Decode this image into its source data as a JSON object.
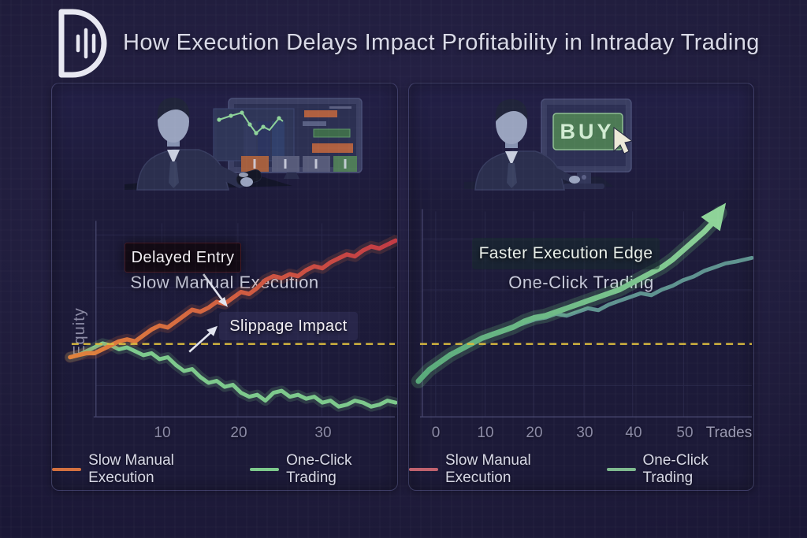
{
  "header": {
    "logo": "d-candlestick-logo",
    "title": "How Execution Delays Impact Profitability in Intraday Trading"
  },
  "panels": {
    "left": {
      "caption": "Slow Manual Execution",
      "y_axis_label": "Equity",
      "annotations": {
        "delayed_entry": "Delayed Entry",
        "slippage_impact": "Slippage Impact"
      },
      "x_ticks": [
        "10",
        "20",
        "30"
      ],
      "legend": [
        {
          "label": "Slow Manual Execution",
          "color": "#d4713f"
        },
        {
          "label": "One-Click Trading",
          "color": "#7dc98c"
        }
      ]
    },
    "right": {
      "caption": "One-Click Trading",
      "buy_button": "BUY",
      "annotations": {
        "faster_edge": "Faster Execution Edge"
      },
      "x_ticks": [
        "0",
        "10",
        "20",
        "30",
        "40",
        "50"
      ],
      "x_axis_title": "Trades",
      "legend": [
        {
          "label": "Slow Manual Execution",
          "color": "#c0626e"
        },
        {
          "label": "One-Click Trading",
          "color": "#7fba8f"
        }
      ]
    }
  },
  "colors": {
    "background": "#1f1c3b",
    "panel": "#1d1b3a",
    "baseline_dash": "#d9ba3e",
    "slow_left_gradient": [
      "#e0823c",
      "#c23b45"
    ],
    "one_click_left": "#7dc98c",
    "one_click_right_gradient": [
      "#58a97a",
      "#8ed398"
    ],
    "slow_right": "#5f9390"
  },
  "chart_data": [
    {
      "type": "line",
      "panel": "left",
      "title": "Slow Manual Execution",
      "xlabel": "",
      "ylabel": "Equity",
      "xlim": [
        0,
        40
      ],
      "ylim": [
        -38,
        58
      ],
      "x_ticks": [
        10,
        20,
        30
      ],
      "baseline_y": 0,
      "grid": true,
      "annotations": [
        "Delayed Entry",
        "Slippage Impact"
      ],
      "series": [
        {
          "name": "One-Click Trading",
          "color": "#7dc98c",
          "glow": "#7dc98c",
          "width": 5,
          "x": [
            0,
            1,
            2,
            3,
            4,
            5,
            6,
            7,
            8,
            9,
            10,
            11,
            12,
            13,
            14,
            15,
            16,
            17,
            18,
            19,
            20,
            21,
            22,
            23,
            24,
            25,
            26,
            27,
            28,
            29,
            30,
            31,
            32,
            33,
            34,
            35,
            36,
            37,
            38,
            39,
            40
          ],
          "y": [
            -7,
            -6,
            -4,
            -2,
            0,
            -1,
            -3,
            -2,
            -4,
            -6,
            -5,
            -8,
            -7,
            -11,
            -14,
            -13,
            -17,
            -20,
            -19,
            -22,
            -21,
            -25,
            -27,
            -26,
            -29,
            -25,
            -24,
            -27,
            -26,
            -28,
            -27,
            -30,
            -29,
            -32,
            -31,
            -29,
            -30,
            -32,
            -31,
            -29,
            -30
          ]
        },
        {
          "name": "Slow Manual Execution",
          "color_start": "#e0823c",
          "color_end": "#c23b45",
          "glow": "#d96b3e",
          "width": 5.5,
          "x": [
            0,
            1,
            2,
            3,
            4,
            5,
            6,
            7,
            8,
            9,
            10,
            11,
            12,
            13,
            14,
            15,
            16,
            17,
            18,
            19,
            20,
            21,
            22,
            23,
            24,
            25,
            26,
            27,
            28,
            29,
            30,
            31,
            32,
            33,
            34,
            35,
            36,
            37,
            38,
            39,
            40
          ],
          "y": [
            -7,
            -6,
            -5,
            -5,
            -3,
            -1,
            1,
            2,
            1,
            4,
            7,
            9,
            8,
            11,
            14,
            17,
            16,
            18,
            21,
            20,
            23,
            26,
            25,
            28,
            32,
            34,
            33,
            35,
            34,
            37,
            39,
            38,
            41,
            43,
            45,
            44,
            47,
            49,
            48,
            50,
            52
          ]
        }
      ]
    },
    {
      "type": "line",
      "panel": "right",
      "title": "One-Click Trading",
      "xlabel": "Trades",
      "ylabel": "",
      "xlim": [
        0,
        63
      ],
      "ylim": [
        -40,
        70
      ],
      "x_ticks": [
        0,
        10,
        20,
        30,
        40,
        50
      ],
      "baseline_y": 0,
      "grid": true,
      "annotations": [
        "Faster Execution Edge"
      ],
      "series": [
        {
          "name": "Slow Manual Execution",
          "color": "#5f9390",
          "width": 5,
          "x": [
            0,
            2,
            4,
            6,
            8,
            10,
            12,
            14,
            16,
            18,
            20,
            22,
            24,
            26,
            28,
            30,
            32,
            34,
            36,
            38,
            40,
            42,
            44,
            46,
            48,
            50,
            52,
            54,
            56,
            58,
            60,
            63
          ],
          "y": [
            -20,
            -14,
            -10,
            -6,
            -3,
            0,
            3,
            5,
            7,
            9,
            11,
            13,
            14,
            16,
            15,
            17,
            19,
            18,
            21,
            23,
            25,
            27,
            26,
            29,
            31,
            34,
            36,
            39,
            41,
            43,
            44,
            46
          ]
        },
        {
          "name": "One-Click Trading",
          "color_start": "#58a97a",
          "color_end": "#8ed398",
          "glow": "#7ee58a",
          "width": 7,
          "arrow_end": true,
          "x": [
            0,
            2,
            4,
            6,
            8,
            10,
            12,
            14,
            16,
            18,
            20,
            22,
            24,
            26,
            28,
            30,
            32,
            34,
            36,
            38,
            40,
            42,
            44,
            46,
            48,
            50,
            52,
            54,
            56,
            57
          ],
          "y": [
            -20,
            -14,
            -10,
            -6,
            -3,
            0,
            3,
            5,
            7,
            9,
            12,
            14,
            15,
            17,
            19,
            21,
            23,
            25,
            27,
            29,
            32,
            35,
            38,
            41,
            45,
            50,
            55,
            60,
            66,
            70
          ]
        }
      ]
    }
  ]
}
